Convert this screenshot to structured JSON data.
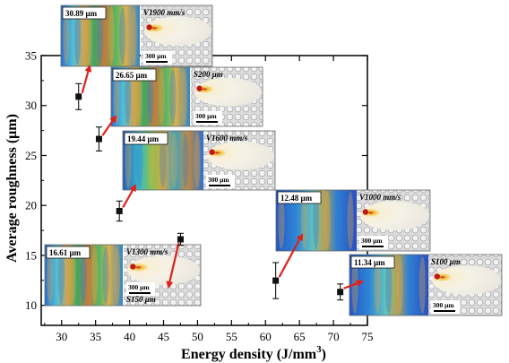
{
  "chart_data": {
    "type": "scatter",
    "title": "",
    "xlabel": "Energy density (J/mm",
    "xlabel_sup": "3",
    "xlabel_close": ")",
    "ylabel": "Average roughness (μm)",
    "xlim": [
      27,
      75
    ],
    "ylim": [
      8,
      35
    ],
    "x_ticks": [
      30,
      35,
      40,
      45,
      50,
      55,
      60,
      65,
      70,
      75
    ],
    "y_ticks": [
      10,
      15,
      20,
      25,
      30,
      35
    ],
    "grid": false,
    "legend": "none",
    "series": [
      {
        "points": [
          {
            "x": 32.5,
            "y": 30.89,
            "err": 1.3
          },
          {
            "x": 35.5,
            "y": 26.65,
            "err": 1.2
          },
          {
            "x": 38.5,
            "y": 19.44,
            "err": 1.0
          },
          {
            "x": 47.5,
            "y": 16.61,
            "err": 0.6
          },
          {
            "x": 61.5,
            "y": 12.48,
            "err": 1.8
          },
          {
            "x": 71.0,
            "y": 11.34,
            "err": 0.8
          }
        ]
      }
    ],
    "insets": [
      {
        "roughness": "30.89 μm",
        "params": "V1900 mm/s",
        "scale": "300 μm"
      },
      {
        "roughness": "26.65 μm",
        "params": "S200 μm",
        "scale": "300 μm"
      },
      {
        "roughness": "19.44 μm",
        "params": "V1600 mm/s",
        "scale": "300 μm"
      },
      {
        "roughness": "16.61 μm",
        "params": "V1300 mm/s",
        "params2": "S150 μm",
        "scale": "300 μm"
      },
      {
        "roughness": "12.48 μm",
        "params": "V1000 mm/s",
        "scale": "300 μm"
      },
      {
        "roughness": "11.34 μm",
        "params": "S100 μm",
        "scale": "300 μm"
      }
    ],
    "colors": {
      "point": "#111111",
      "arrow": "#e0201b",
      "axis": "#000000"
    }
  }
}
